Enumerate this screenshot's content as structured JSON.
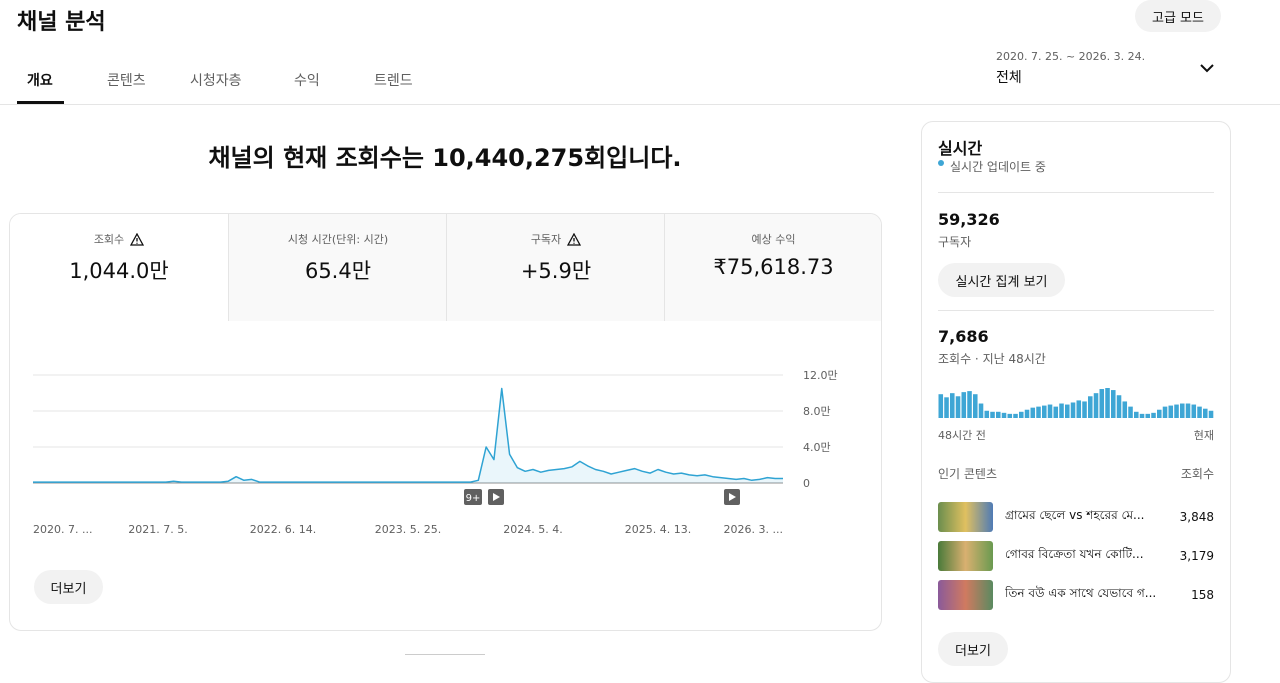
{
  "header": {
    "title": "채널 분석",
    "advanced_button": "고급 모드",
    "date_range": "2020. 7. 25. ~ 2026. 3. 24.",
    "period": "전체"
  },
  "tabs": [
    "개요",
    "콘텐츠",
    "시청자층",
    "수익",
    "트렌드"
  ],
  "headline": "채널의 현재 조회수는 10,440,275회입니다.",
  "metrics": [
    {
      "label": "조회수",
      "value": "1,044.0만"
    },
    {
      "label": "시청 시간(단위: 시간)",
      "value": "65.4만"
    },
    {
      "label": "구독자",
      "value": "+5.9만"
    },
    {
      "label": "예상 수익",
      "value": "₹75,618.73"
    }
  ],
  "more_button": "더보기",
  "chart_data": [
    {
      "type": "line",
      "color": "#2fa3d3",
      "annotation": "9+",
      "categories": [
        "2020. 7. ...",
        null,
        null,
        null,
        null,
        null,
        null,
        null,
        null,
        null,
        null,
        null,
        null,
        null,
        null,
        null,
        "2021. 7. 5.",
        null,
        null,
        null,
        null,
        null,
        null,
        null,
        null,
        null,
        null,
        null,
        null,
        null,
        null,
        null,
        "2022. 6. 14.",
        null,
        null,
        null,
        null,
        null,
        null,
        null,
        null,
        null,
        null,
        null,
        null,
        null,
        null,
        null,
        "2023. 5. 25.",
        null,
        null,
        null,
        null,
        null,
        null,
        null,
        null,
        null,
        null,
        null,
        null,
        null,
        null,
        null,
        "2024. 5. 4.",
        null,
        null,
        null,
        null,
        null,
        null,
        null,
        null,
        null,
        null,
        null,
        null,
        null,
        null,
        null,
        "2025. 4. 13.",
        null,
        null,
        null,
        null,
        null,
        null,
        null,
        null,
        null,
        null,
        null,
        null,
        null,
        null,
        null,
        "2026. 3. ..."
      ],
      "values": [
        0.1,
        0.1,
        0.1,
        0.1,
        0.1,
        0.1,
        0.1,
        0.1,
        0.1,
        0.1,
        0.1,
        0.1,
        0.1,
        0.1,
        0.1,
        0.1,
        0.1,
        0.1,
        0.2,
        0.1,
        0.1,
        0.1,
        0.1,
        0.1,
        0.1,
        0.2,
        0.7,
        0.3,
        0.4,
        0.1,
        0.1,
        0.1,
        0.1,
        0.1,
        0.1,
        0.1,
        0.1,
        0.1,
        0.1,
        0.1,
        0.1,
        0.1,
        0.1,
        0.1,
        0.1,
        0.1,
        0.1,
        0.1,
        0.1,
        0.1,
        0.1,
        0.1,
        0.1,
        0.1,
        0.1,
        0.1,
        0.1,
        0.3,
        4.0,
        2.6,
        10.5,
        3.2,
        1.7,
        1.3,
        1.5,
        1.2,
        1.4,
        1.5,
        1.6,
        1.8,
        2.4,
        1.9,
        1.5,
        1.3,
        1.0,
        1.2,
        1.4,
        1.6,
        1.3,
        1.1,
        1.5,
        1.2,
        1.0,
        1.1,
        0.9,
        0.8,
        0.9,
        0.7,
        0.6,
        0.5,
        0.4,
        0.5,
        0.3,
        0.4,
        0.6,
        0.5,
        0.5
      ],
      "ylim": [
        0,
        12
      ],
      "yticks": [
        0,
        {
          "value": 4,
          "label": "4.0만"
        },
        {
          "value": 8,
          "label": "8.0만"
        },
        {
          "value": 12,
          "label": "12.0만"
        }
      ],
      "grid": true
    },
    {
      "type": "bar",
      "color": "#3ea6d5",
      "categories": [
        "48시간 전",
        null,
        null,
        null,
        null,
        null,
        null,
        null,
        null,
        null,
        null,
        null,
        null,
        null,
        null,
        null,
        null,
        null,
        null,
        null,
        null,
        null,
        null,
        null,
        null,
        null,
        null,
        null,
        null,
        null,
        null,
        null,
        null,
        null,
        null,
        null,
        null,
        null,
        null,
        null,
        null,
        null,
        null,
        null,
        null,
        null,
        null,
        "현재"
      ],
      "values": [
        230,
        200,
        240,
        210,
        250,
        260,
        230,
        140,
        70,
        60,
        60,
        50,
        40,
        40,
        60,
        80,
        100,
        110,
        120,
        130,
        110,
        140,
        130,
        150,
        170,
        160,
        210,
        240,
        280,
        290,
        270,
        220,
        160,
        110,
        60,
        40,
        40,
        50,
        80,
        110,
        120,
        130,
        140,
        140,
        130,
        110,
        90,
        70
      ]
    }
  ],
  "realtime": {
    "title": "실시간",
    "status": "실시간 업데이트 중",
    "subscribers": "59,326",
    "subscribers_label": "구독자",
    "live_button": "실시간 집계 보기",
    "views": "7,686",
    "views_label": "조회수 · 지난 48시간",
    "top_content_label": "인기 콘텐츠",
    "top_content_metric": "조회수",
    "items": [
      {
        "title": "গ্রামের ছেলে vs শহরের মে...",
        "views": "3,848"
      },
      {
        "title": "গোবর বিক্রেতা যখন কোটি...",
        "views": "3,179"
      },
      {
        "title": "তিন বউ এক সাথে যেভাবে গ...",
        "views": "158"
      }
    ],
    "more_button": "더보기"
  }
}
